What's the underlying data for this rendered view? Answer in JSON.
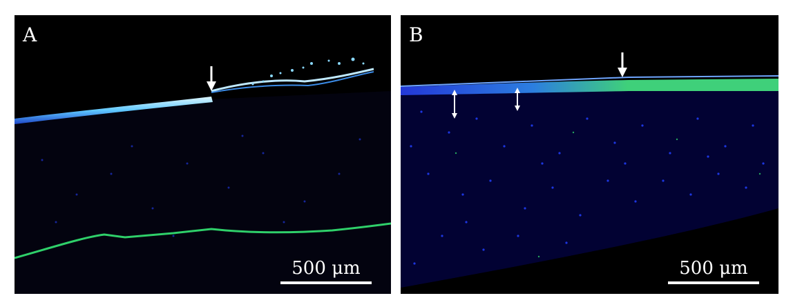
{
  "figure": {
    "panels": [
      {
        "label": "A",
        "scale_bar": "500 μm"
      },
      {
        "label": "B",
        "scale_bar": "500 μm"
      }
    ],
    "colors": {
      "background": "#000000",
      "nuclei_blue": "#1f35d6",
      "epithelium_cyan": "#7ed8ff",
      "signal_green": "#2fd06a",
      "annotation_white": "#ffffff"
    }
  }
}
